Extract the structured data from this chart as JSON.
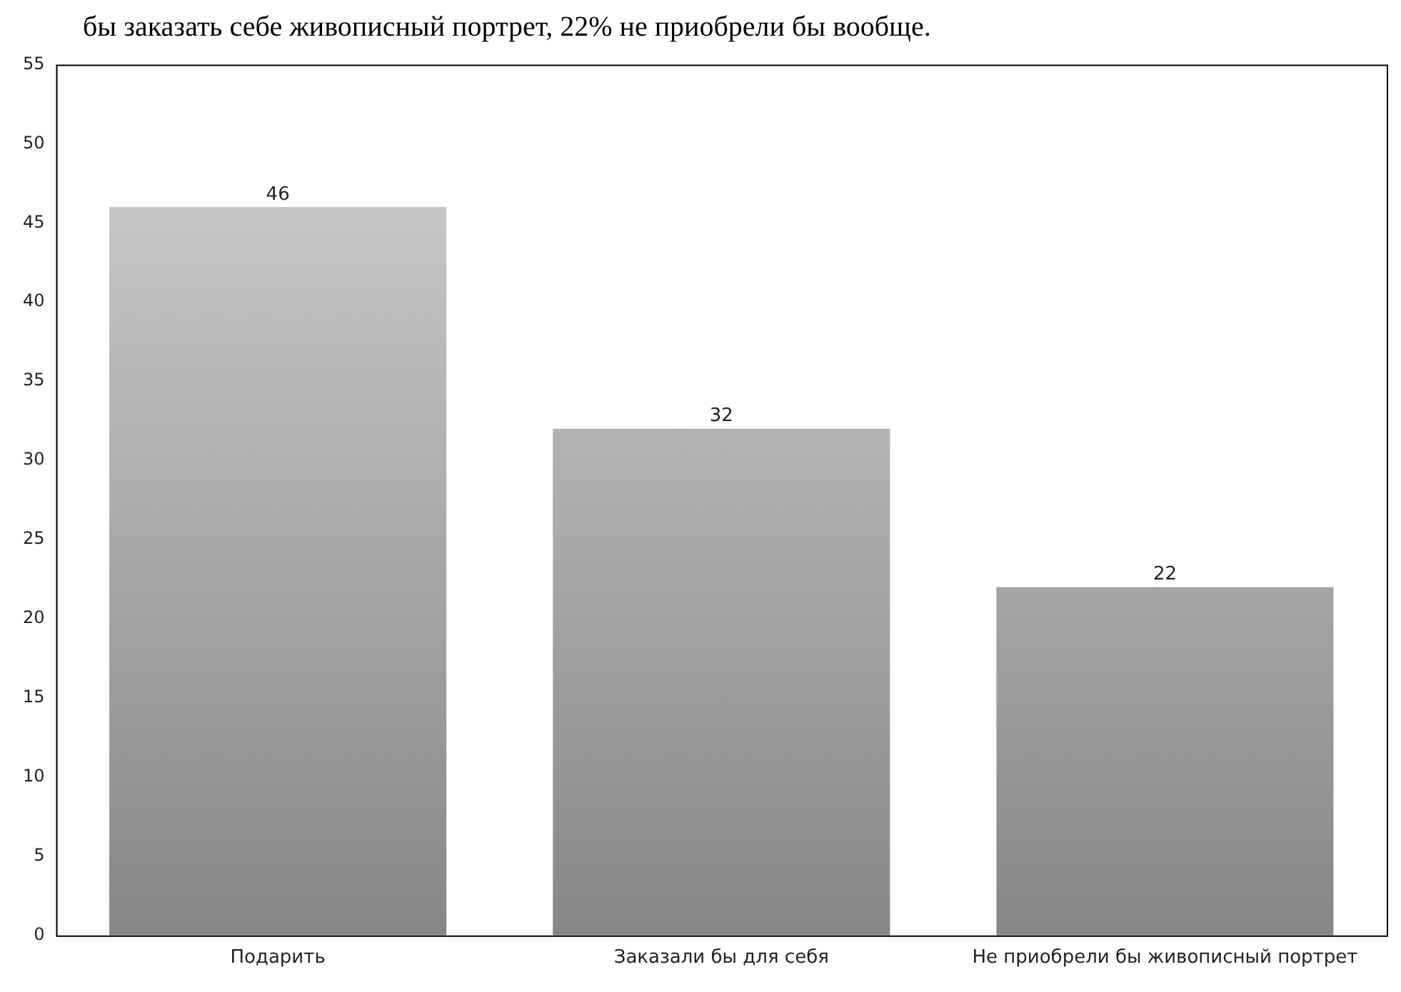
{
  "chart_data": {
    "type": "bar",
    "annotations": [
      "бы заказать себе живописный портрет, 22% не приобрели бы вообще."
    ],
    "categories": [
      "Подарить",
      "Заказали бы для себя",
      "Не приобрели бы живописный портрет"
    ],
    "values": [
      46,
      32,
      22
    ],
    "color": "#adadad",
    "ylim": [
      0,
      55
    ],
    "yticks": [
      0,
      5,
      10,
      15,
      20,
      25,
      30,
      35,
      40,
      45,
      50,
      55
    ],
    "grid": false,
    "data_labels": true
  }
}
